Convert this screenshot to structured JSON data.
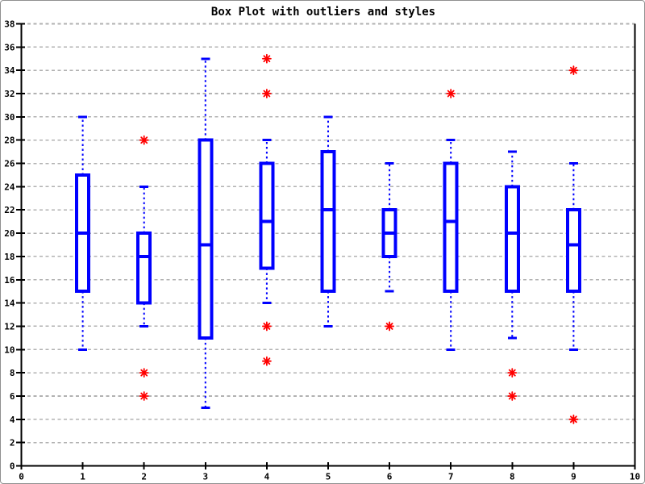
{
  "chart_data": {
    "type": "boxplot",
    "title": "Box Plot with outliers and styles",
    "xlabel": "",
    "ylabel": "",
    "xlim": [
      0,
      10
    ],
    "ylim": [
      0,
      38
    ],
    "x_ticks": [
      0,
      1,
      2,
      3,
      4,
      5,
      6,
      7,
      8,
      9,
      10
    ],
    "y_ticks": [
      0,
      2,
      4,
      6,
      8,
      10,
      12,
      14,
      16,
      18,
      20,
      22,
      24,
      26,
      28,
      30,
      32,
      34,
      36,
      38
    ],
    "grid": "horizontal-dashed",
    "legend": "none",
    "colors": {
      "box": "#0000ff",
      "box_fill": "#ffffff",
      "outlier": "#ff0000",
      "grid": "#b2b2b2",
      "axis": "#000000",
      "background": "#ffffff",
      "border": "#909090"
    },
    "series": [
      {
        "x": 1,
        "whisker_low": 10,
        "q1": 15,
        "median": 20,
        "q3": 25,
        "whisker_high": 30,
        "outliers": []
      },
      {
        "x": 2,
        "whisker_low": 12,
        "q1": 14,
        "median": 18,
        "q3": 20,
        "whisker_high": 24,
        "outliers": [
          28,
          8,
          6
        ]
      },
      {
        "x": 3,
        "whisker_low": 5,
        "q1": 11,
        "median": 19,
        "q3": 28,
        "whisker_high": 35,
        "outliers": []
      },
      {
        "x": 4,
        "whisker_low": 14,
        "q1": 17,
        "median": 21,
        "q3": 26,
        "whisker_high": 28,
        "outliers": [
          35,
          32,
          12,
          9
        ]
      },
      {
        "x": 5,
        "whisker_low": 12,
        "q1": 15,
        "median": 22,
        "q3": 27,
        "whisker_high": 30,
        "outliers": []
      },
      {
        "x": 6,
        "whisker_low": 15,
        "q1": 18,
        "median": 20,
        "q3": 22,
        "whisker_high": 26,
        "outliers": [
          12
        ]
      },
      {
        "x": 7,
        "whisker_low": 10,
        "q1": 15,
        "median": 21,
        "q3": 26,
        "whisker_high": 28,
        "outliers": [
          32
        ]
      },
      {
        "x": 8,
        "whisker_low": 11,
        "q1": 15,
        "median": 20,
        "q3": 24,
        "whisker_high": 27,
        "outliers": [
          8,
          6
        ]
      },
      {
        "x": 9,
        "whisker_low": 10,
        "q1": 15,
        "median": 19,
        "q3": 22,
        "whisker_high": 26,
        "outliers": [
          34,
          4
        ]
      }
    ]
  }
}
